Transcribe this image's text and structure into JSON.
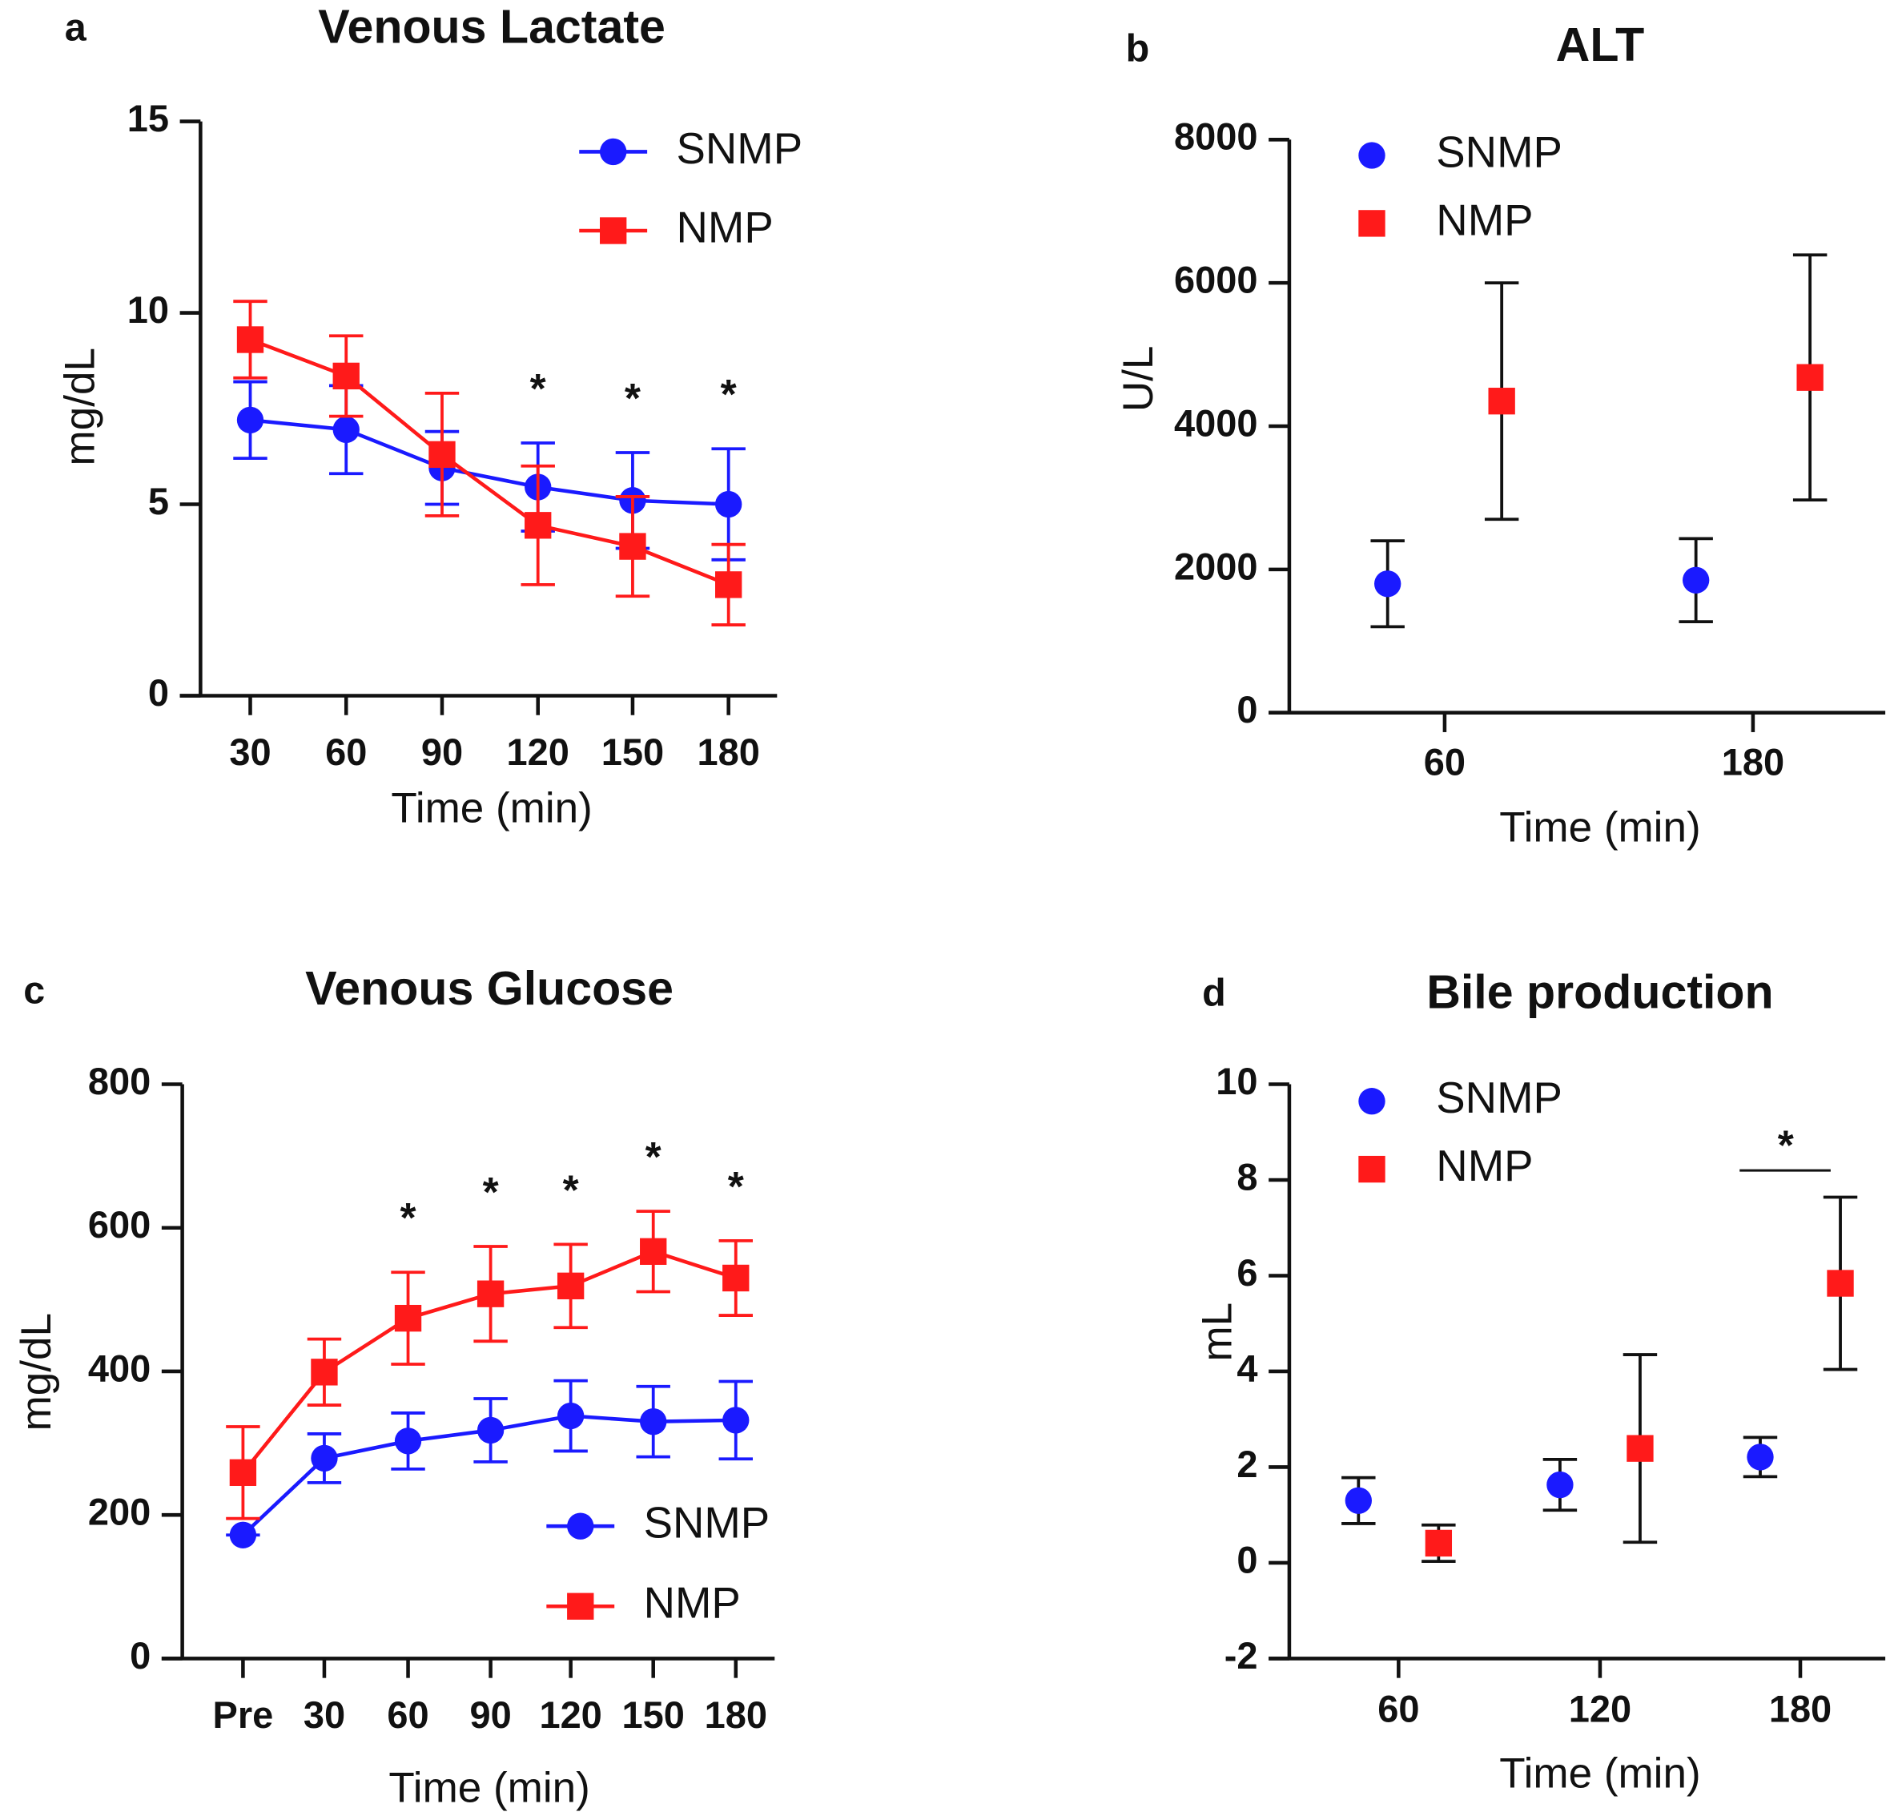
{
  "chart_data": [
    {
      "type": "line",
      "panel_label": "a",
      "title": "Venous Lactate",
      "y_label": "mg/dL",
      "x_label": "Time (min)",
      "categories": [
        "30",
        "60",
        "90",
        "120",
        "150",
        "180"
      ],
      "ylim": [
        0,
        15
      ],
      "yticks": [
        0,
        5,
        10,
        15
      ],
      "series": [
        {
          "name": "SNMP",
          "color": "#1a1aff",
          "marker": "circle",
          "values": [
            7.2,
            6.95,
            5.95,
            5.45,
            5.1,
            5.0
          ],
          "errors": [
            1.0,
            1.15,
            0.95,
            1.15,
            1.25,
            1.45
          ]
        },
        {
          "name": "NMP",
          "color": "#ff1a1a",
          "marker": "square",
          "values": [
            9.3,
            8.35,
            6.3,
            4.45,
            3.9,
            2.9
          ],
          "errors": [
            1.0,
            1.05,
            1.6,
            1.55,
            1.3,
            1.05
          ]
        }
      ],
      "annotations": [
        {
          "text": "*",
          "x": "120"
        },
        {
          "text": "*",
          "x": "150"
        },
        {
          "text": "*",
          "x": "180"
        }
      ]
    },
    {
      "type": "dot",
      "panel_label": "b",
      "title": "ALT",
      "y_label": "U/L",
      "x_label": "Time (min)",
      "categories": [
        "60",
        "180"
      ],
      "ylim": [
        0,
        8000
      ],
      "yticks": [
        0,
        2000,
        4000,
        6000,
        8000
      ],
      "series": [
        {
          "name": "SNMP",
          "color": "#1a1aff",
          "marker": "circle",
          "values": [
            1800,
            1850
          ],
          "errors": [
            600,
            580
          ]
        },
        {
          "name": "NMP",
          "color": "#ff1a1a",
          "marker": "square",
          "values": [
            4350,
            4680
          ],
          "errors": [
            1650,
            1710
          ]
        }
      ]
    },
    {
      "type": "line",
      "panel_label": "c",
      "title": "Venous Glucose",
      "y_label": "mg/dL",
      "x_label": "Time (min)",
      "categories": [
        "Pre",
        "30",
        "60",
        "90",
        "120",
        "150",
        "180"
      ],
      "ylim": [
        0,
        800
      ],
      "yticks": [
        0,
        200,
        400,
        600,
        800
      ],
      "series": [
        {
          "name": "SNMP",
          "color": "#1a1aff",
          "marker": "circle",
          "values": [
            172,
            279,
            303,
            318,
            338,
            330,
            332
          ],
          "errors": [
            0,
            34,
            39,
            44,
            49,
            49,
            54
          ]
        },
        {
          "name": "NMP",
          "color": "#ff1a1a",
          "marker": "square",
          "values": [
            259,
            399,
            474,
            508,
            519,
            567,
            530
          ],
          "errors": [
            64,
            46,
            64,
            66,
            58,
            56,
            52
          ]
        }
      ],
      "annotations": [
        {
          "text": "*",
          "x": "60"
        },
        {
          "text": "*",
          "x": "90"
        },
        {
          "text": "*",
          "x": "120"
        },
        {
          "text": "*",
          "x": "150"
        },
        {
          "text": "*",
          "x": "180"
        }
      ]
    },
    {
      "type": "dot",
      "panel_label": "d",
      "title": "Bile production",
      "y_label": "mL",
      "x_label": "Time (min)",
      "categories": [
        "60",
        "120",
        "180"
      ],
      "ylim": [
        -2,
        10
      ],
      "yticks": [
        -2,
        0,
        2,
        4,
        6,
        8,
        10
      ],
      "series": [
        {
          "name": "SNMP",
          "color": "#1a1aff",
          "marker": "circle",
          "values": [
            1.3,
            1.63,
            2.21
          ],
          "errors": [
            0.48,
            0.53,
            0.41
          ]
        },
        {
          "name": "NMP",
          "color": "#ff1a1a",
          "marker": "square",
          "values": [
            0.41,
            2.39,
            5.84
          ],
          "errors": [
            0.38,
            1.96,
            1.8
          ]
        }
      ],
      "annotations": [
        {
          "text": "*",
          "x": "180",
          "bracket": true
        }
      ]
    }
  ]
}
